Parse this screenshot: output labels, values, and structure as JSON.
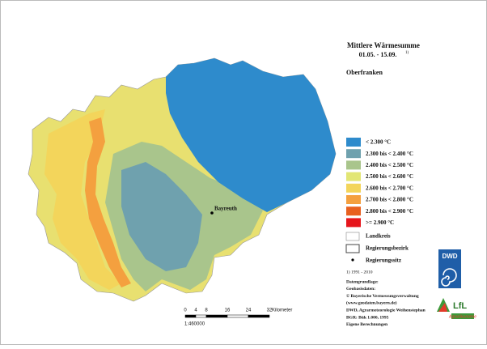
{
  "title": "Mittlere Wärmesumme",
  "subtitle": "01.05. - 15.09.",
  "subtitle_note": "1)",
  "region": "Oberfranken",
  "city": "Bayreuth",
  "legend": [
    {
      "label": "< 2.300 °C",
      "color": "#2e8bcc"
    },
    {
      "label": "2.300 bis < 2.400 °C",
      "color": "#6fa1ae"
    },
    {
      "label": "2.400 bis < 2.500 °C",
      "color": "#a9c58c"
    },
    {
      "label": "2.500 bis < 2.600 °C",
      "color": "#e2e674"
    },
    {
      "label": "2.600 bis < 2.700 °C",
      "color": "#f3d55b"
    },
    {
      "label": "2.700 bis < 2.800 °C",
      "color": "#f4a03f"
    },
    {
      "label": "2.800 bis < 2.900 °C",
      "color": "#e8601f"
    },
    {
      "label": ">= 2.900 °C",
      "color": "#e6161c"
    }
  ],
  "boundaries": [
    "Landkreis",
    "Regierungsbezirk",
    "Regierungssitz"
  ],
  "footnote": "1) 1991 - 2010",
  "sources": [
    "Datengrundlage:",
    "Geobasisdaten:",
    "© Bayerische Vermessungsverwaltung",
    "(www.geodaten.bayern.de)",
    "DWD, Agrarmeteorologie Weihenstephan",
    "BGR: Bük 1.000, 1995",
    "Eigene Berechnungen"
  ],
  "scale": {
    "ticks": [
      0,
      4,
      8,
      16,
      24,
      32
    ],
    "unit": "Kilometer",
    "ratio": "1:460000"
  },
  "logos": {
    "dwd": "DWD",
    "lfl": "LfL",
    "lfl_sub": "Agrarökonomie"
  }
}
